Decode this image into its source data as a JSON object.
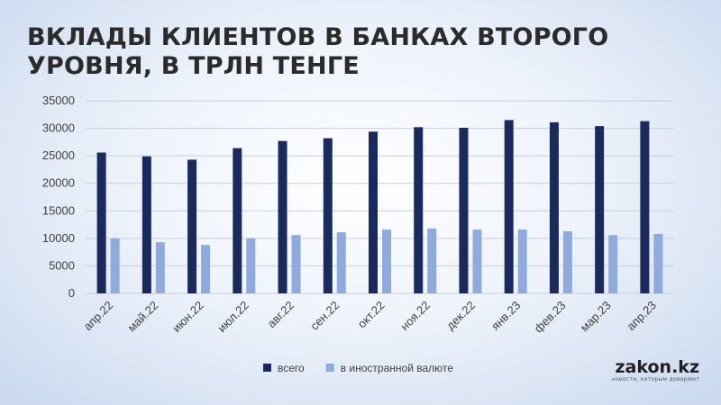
{
  "title": "ВКЛАДЫ КЛИЕНТОВ В БАНКАХ ВТОРОГО УРОВНЯ, В ТРЛН ТЕНГЕ",
  "logo": {
    "main": "zakon.kz",
    "sub": "новости, которым доверяют"
  },
  "chart_data": {
    "type": "bar",
    "title": "ВКЛАДЫ КЛИЕНТОВ В БАНКАХ ВТОРОГО УРОВНЯ, В ТРЛН ТЕНГЕ",
    "categories": [
      "апр.22",
      "май.22",
      "июн.22",
      "июл.22",
      "авг.22",
      "сен.22",
      "окт.22",
      "ноя.22",
      "дек.22",
      "янв.23",
      "фев.23",
      "мар.23",
      "апр.23"
    ],
    "series": [
      {
        "name": "всего",
        "color": "#1b2a5c",
        "values": [
          25600,
          24900,
          24300,
          26400,
          27700,
          28200,
          29400,
          30200,
          30100,
          31500,
          31100,
          30400,
          31300
        ]
      },
      {
        "name": "в иностранной валюте",
        "color": "#8faadc",
        "values": [
          10000,
          9300,
          8800,
          10000,
          10600,
          11100,
          11600,
          11800,
          11600,
          11600,
          11300,
          10600,
          10800
        ]
      }
    ],
    "ylim": [
      0,
      35000
    ],
    "yticks": [
      0,
      5000,
      10000,
      15000,
      20000,
      25000,
      30000,
      35000
    ],
    "grid": true,
    "legend": "bottom-center"
  }
}
